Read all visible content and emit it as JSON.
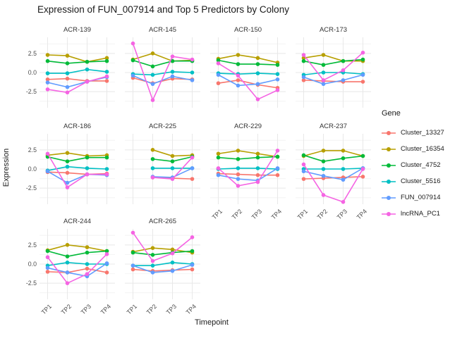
{
  "title": "Expression of FUN_007914 and Top 5 Predictors by Colony",
  "axes": {
    "x_label": "Timepoint",
    "y_label": "Expression",
    "y_tick_labels": [
      "2.5",
      "0.0",
      "-2.5"
    ],
    "x_tick_labels": [
      "TP1",
      "TP2",
      "TP3",
      "TP4"
    ]
  },
  "legend": {
    "title": "Gene",
    "items": [
      {
        "label": "Cluster_13327",
        "color": "#F8766D"
      },
      {
        "label": "Cluster_16354",
        "color": "#B79F00"
      },
      {
        "label": "Cluster_4752",
        "color": "#00BA38"
      },
      {
        "label": "Cluster_5516",
        "color": "#00BFC4"
      },
      {
        "label": "FUN_007914",
        "color": "#619CFF"
      },
      {
        "label": "lncRNA_PC1",
        "color": "#F564E3"
      }
    ]
  },
  "chart_data": {
    "type": "line",
    "facet_by": "Colony",
    "x": [
      "TP1",
      "TP2",
      "TP3",
      "TP4"
    ],
    "ylim": [
      -4.6,
      4.6
    ],
    "y_major_gridlines": [
      2.5,
      0,
      -2.5
    ],
    "y_minor_gridlines": [
      3.75,
      1.25,
      -1.25,
      -3.75
    ],
    "series_names": [
      "Cluster_13327",
      "Cluster_16354",
      "Cluster_4752",
      "Cluster_5516",
      "FUN_007914",
      "lncRNA_PC1"
    ],
    "facets": [
      {
        "name": "ACR-139",
        "series": {
          "Cluster_13327": [
            -0.9,
            -0.8,
            -1.1,
            -1.1
          ],
          "Cluster_16354": [
            2.3,
            2.2,
            1.4,
            1.9
          ],
          "Cluster_4752": [
            1.5,
            1.2,
            1.4,
            1.5
          ],
          "Cluster_5516": [
            -0.1,
            -0.1,
            0.4,
            0.1
          ],
          "FUN_007914": [
            -1.3,
            -1.9,
            -1.2,
            -0.6
          ],
          "lncRNA_PC1": [
            -2.2,
            -2.6,
            -1.2,
            -0.5
          ]
        }
      },
      {
        "name": "ACR-145",
        "series": {
          "Cluster_13327": [
            -0.7,
            -1.4,
            -0.8,
            -0.9
          ],
          "Cluster_16354": [
            1.7,
            2.5,
            1.5,
            1.6
          ],
          "Cluster_4752": [
            1.6,
            0.8,
            1.5,
            1.5
          ],
          "Cluster_5516": [
            -0.2,
            -0.3,
            0.1,
            0.0
          ],
          "FUN_007914": [
            -0.4,
            -1.5,
            -0.5,
            -1.0
          ],
          "lncRNA_PC1": [
            3.8,
            -3.6,
            2.1,
            1.7
          ]
        }
      },
      {
        "name": "ACR-150",
        "series": {
          "Cluster_13327": [
            -1.4,
            -1.0,
            -1.6,
            -2.0
          ],
          "Cluster_16354": [
            1.8,
            2.3,
            1.9,
            1.3
          ],
          "Cluster_4752": [
            1.6,
            1.1,
            1.1,
            1.0
          ],
          "Cluster_5516": [
            -0.1,
            -0.2,
            -0.1,
            -0.2
          ],
          "FUN_007914": [
            -0.3,
            -1.7,
            -1.5,
            -0.9
          ],
          "lncRNA_PC1": [
            1.2,
            -0.4,
            -3.5,
            -2.3
          ]
        }
      },
      {
        "name": "ACR-173",
        "series": {
          "Cluster_13327": [
            -1.0,
            -1.1,
            -1.2,
            -1.2
          ],
          "Cluster_16354": [
            1.9,
            2.3,
            1.5,
            1.5
          ],
          "Cluster_4752": [
            1.5,
            1.0,
            1.5,
            1.7
          ],
          "Cluster_5516": [
            -0.3,
            0.0,
            0.0,
            -0.2
          ],
          "FUN_007914": [
            -0.6,
            -1.5,
            -1.0,
            -0.3
          ],
          "lncRNA_PC1": [
            2.3,
            -1.0,
            0.3,
            2.6
          ]
        }
      },
      {
        "name": "ACR-186",
        "series": {
          "Cluster_13327": [
            -0.4,
            -0.5,
            -0.7,
            -0.6
          ],
          "Cluster_16354": [
            1.8,
            2.1,
            1.7,
            1.8
          ],
          "Cluster_4752": [
            1.6,
            1.0,
            1.5,
            1.5
          ],
          "Cluster_5516": [
            -0.2,
            0.3,
            0.1,
            0.0
          ],
          "FUN_007914": [
            -0.3,
            -1.8,
            -0.7,
            -0.8
          ],
          "lncRNA_PC1": [
            2.0,
            -2.4,
            -0.7,
            -0.7
          ]
        }
      },
      {
        "name": "ACR-225",
        "series": {
          "Cluster_13327": [
            null,
            -1.1,
            -1.2,
            -1.3
          ],
          "Cluster_16354": [
            null,
            2.5,
            1.7,
            1.8
          ],
          "Cluster_4752": [
            null,
            1.3,
            1.0,
            1.6
          ],
          "Cluster_5516": [
            null,
            0.1,
            0.1,
            0.1
          ],
          "FUN_007914": [
            null,
            -1.0,
            -1.1,
            0.1
          ],
          "lncRNA_PC1": [
            null,
            -1.1,
            -1.3,
            1.5
          ]
        }
      },
      {
        "name": "ACR-229",
        "series": {
          "Cluster_13327": [
            -0.6,
            -0.7,
            -0.8,
            -0.8
          ],
          "Cluster_16354": [
            2.0,
            2.4,
            2.0,
            1.6
          ],
          "Cluster_4752": [
            1.5,
            1.3,
            1.5,
            1.6
          ],
          "Cluster_5516": [
            0.0,
            0.1,
            0.1,
            0.0
          ],
          "FUN_007914": [
            -0.8,
            -1.3,
            -1.5,
            0.1
          ],
          "lncRNA_PC1": [
            0.1,
            -2.2,
            -1.7,
            2.4
          ]
        }
      },
      {
        "name": "ACR-237",
        "series": {
          "Cluster_13327": [
            -1.3,
            -1.2,
            -1.1,
            -1.0
          ],
          "Cluster_16354": [
            1.7,
            2.4,
            2.4,
            1.7
          ],
          "Cluster_4752": [
            1.8,
            1.0,
            1.4,
            1.7
          ],
          "Cluster_5516": [
            0.0,
            0.0,
            0.0,
            0.1
          ],
          "FUN_007914": [
            -0.3,
            -0.9,
            -1.4,
            0.1
          ],
          "lncRNA_PC1": [
            0.6,
            -3.4,
            -4.3,
            0.0
          ]
        }
      },
      {
        "name": "ACR-244",
        "series": {
          "Cluster_13327": [
            -1.0,
            -1.1,
            -0.6,
            -1.1
          ],
          "Cluster_16354": [
            1.8,
            2.5,
            2.2,
            1.7
          ],
          "Cluster_4752": [
            1.7,
            1.0,
            1.5,
            1.7
          ],
          "Cluster_5516": [
            -0.2,
            0.2,
            0.0,
            0.0
          ],
          "FUN_007914": [
            -0.5,
            -1.1,
            -1.6,
            0.1
          ],
          "lncRNA_PC1": [
            0.9,
            -2.5,
            -1.3,
            1.3
          ]
        }
      },
      {
        "name": "ACR-265",
        "series": {
          "Cluster_13327": [
            -0.7,
            -0.9,
            -0.8,
            -0.7
          ],
          "Cluster_16354": [
            1.6,
            2.1,
            1.9,
            1.5
          ],
          "Cluster_4752": [
            1.5,
            1.2,
            1.5,
            1.7
          ],
          "Cluster_5516": [
            -0.2,
            -0.2,
            0.2,
            0.0
          ],
          "FUN_007914": [
            -0.2,
            -1.1,
            -0.9,
            -0.1
          ],
          "lncRNA_PC1": [
            4.1,
            0.4,
            1.4,
            3.5
          ]
        }
      }
    ]
  }
}
